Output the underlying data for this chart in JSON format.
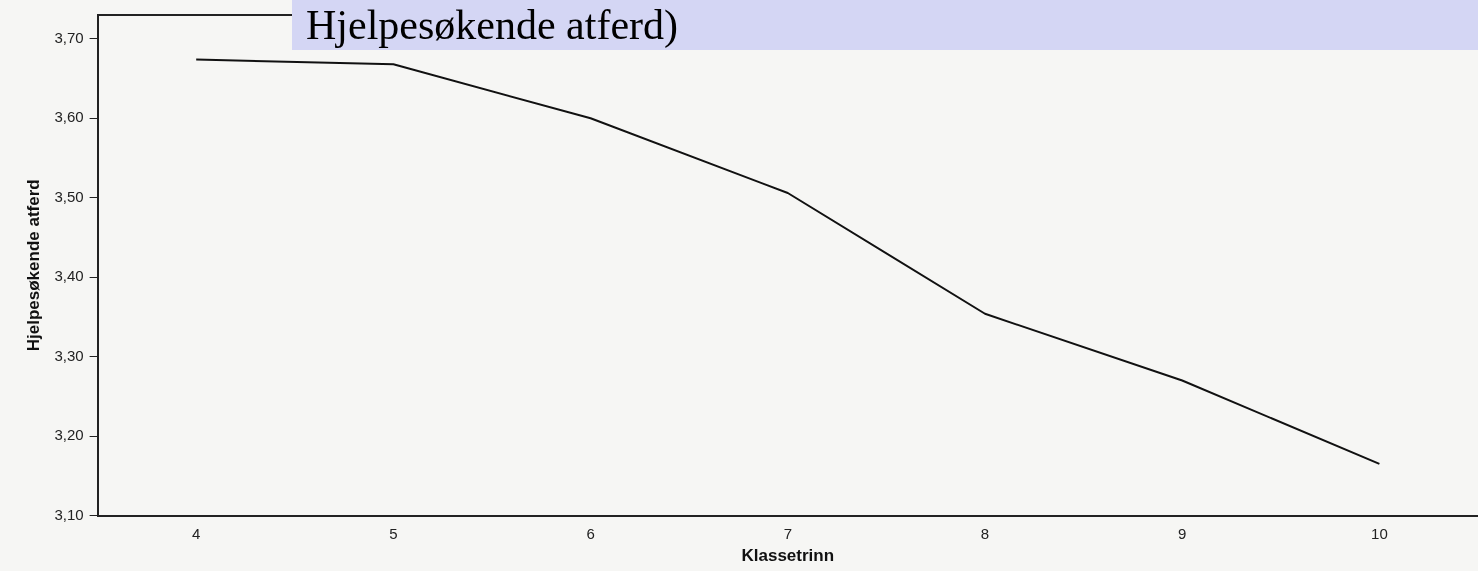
{
  "chart_data": {
    "type": "line",
    "title": "Hjelpesøkende atferd)",
    "xlabel": "Klassetrinn",
    "ylabel": "Hjelpesøkende atferd",
    "categories": [
      "4",
      "5",
      "6",
      "7",
      "8",
      "9",
      "10"
    ],
    "series": [
      {
        "color": "#111111",
        "values": [
          3.674,
          3.668,
          3.6,
          3.506,
          3.354,
          3.27,
          3.165
        ]
      }
    ],
    "ylim": [
      3.1,
      3.73
    ],
    "yticks": [
      {
        "value": 3.1,
        "label": "3,10"
      },
      {
        "value": 3.2,
        "label": "3,20"
      },
      {
        "value": 3.3,
        "label": "3,30"
      },
      {
        "value": 3.4,
        "label": "3,40"
      },
      {
        "value": 3.5,
        "label": "3,50"
      },
      {
        "value": 3.6,
        "label": "3,60"
      },
      {
        "value": 3.7,
        "label": "3,70"
      }
    ],
    "grid": false,
    "legend": false,
    "marker": "none",
    "line_style": "solid"
  }
}
